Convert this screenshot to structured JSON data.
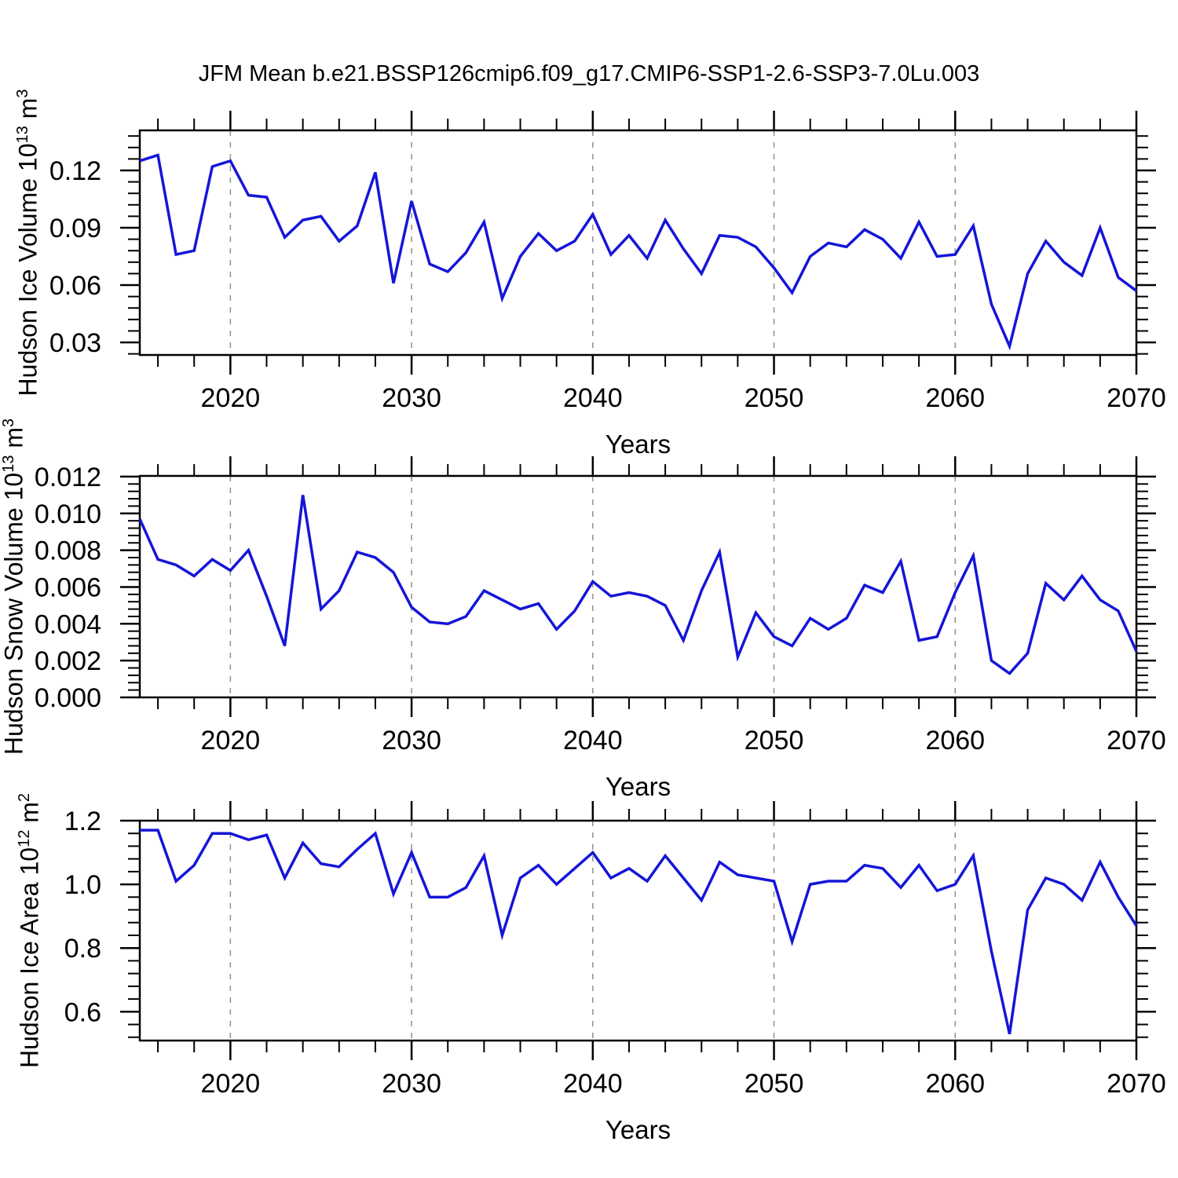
{
  "title": "JFM Mean b.e21.BSSP126cmip6.f09_g17.CMIP6-SSP1-2.6-SSP3-7.0Lu.003",
  "style": {
    "line_color": "#1515d8",
    "axis_color": "#000000",
    "grid_color": "#8f8f8f",
    "background": "#ffffff"
  },
  "chart_data": [
    {
      "type": "line",
      "name": "hudson-ice-volume",
      "ylabel_rich": [
        [
          "Hudson Ice Volume 10",
          0
        ],
        [
          "13",
          1
        ],
        [
          " m",
          0
        ],
        [
          "3",
          1
        ]
      ],
      "xlabel": "Years",
      "xlim": [
        2015,
        2070
      ],
      "ylim": [
        0.02343,
        0.14096
      ],
      "xticks": [
        2020,
        2030,
        2040,
        2050,
        2060,
        2070
      ],
      "xtick_labels": [
        "2020",
        "2030",
        "2040",
        "2050",
        "2060",
        "2070"
      ],
      "x_minor_step": 2,
      "yticks": [
        0.03,
        0.06,
        0.09,
        0.12
      ],
      "ytick_labels": [
        "0.03",
        "0.06",
        "0.09",
        "0.12"
      ],
      "y_minor_step": 0.006,
      "grid_x": [
        2020,
        2030,
        2040,
        2050,
        2060
      ],
      "grid": "vertical-dashed",
      "legend": "none",
      "x": [
        2015,
        2016,
        2017,
        2018,
        2019,
        2020,
        2021,
        2022,
        2023,
        2024,
        2025,
        2026,
        2027,
        2028,
        2029,
        2030,
        2031,
        2032,
        2033,
        2034,
        2035,
        2036,
        2037,
        2038,
        2039,
        2040,
        2041,
        2042,
        2043,
        2044,
        2045,
        2046,
        2047,
        2048,
        2049,
        2050,
        2051,
        2052,
        2053,
        2054,
        2055,
        2056,
        2057,
        2058,
        2059,
        2060,
        2061,
        2062,
        2063,
        2064,
        2065,
        2066,
        2067,
        2068,
        2069,
        2070
      ],
      "values": [
        0.125,
        0.128,
        0.076,
        0.078,
        0.122,
        0.125,
        0.107,
        0.106,
        0.085,
        0.094,
        0.096,
        0.083,
        0.091,
        0.119,
        0.061,
        0.104,
        0.071,
        0.067,
        0.077,
        0.093,
        0.053,
        0.075,
        0.087,
        0.078,
        0.083,
        0.097,
        0.076,
        0.086,
        0.074,
        0.094,
        0.079,
        0.066,
        0.086,
        0.085,
        0.08,
        0.069,
        0.056,
        0.075,
        0.082,
        0.08,
        0.089,
        0.084,
        0.074,
        0.093,
        0.075,
        0.076,
        0.091,
        0.05,
        0.028,
        0.066,
        0.083,
        0.072,
        0.065,
        0.09,
        0.064,
        0.057
      ]
    },
    {
      "type": "line",
      "name": "hudson-snow-volume",
      "ylabel_rich": [
        [
          "Hudson Snow Volume 10",
          0
        ],
        [
          "13",
          1
        ],
        [
          " m",
          0
        ],
        [
          "3",
          1
        ]
      ],
      "xlabel": "Years",
      "xlim": [
        2015,
        2070
      ],
      "ylim": [
        0.0,
        0.01204
      ],
      "xticks": [
        2020,
        2030,
        2040,
        2050,
        2060,
        2070
      ],
      "xtick_labels": [
        "2020",
        "2030",
        "2040",
        "2050",
        "2060",
        "2070"
      ],
      "x_minor_step": 2,
      "yticks": [
        0.0,
        0.002,
        0.004,
        0.006,
        0.008,
        0.01,
        0.012
      ],
      "ytick_labels": [
        "0.000",
        "0.002",
        "0.004",
        "0.006",
        "0.008",
        "0.010",
        "0.012"
      ],
      "y_minor_step": 0.0004,
      "grid_x": [
        2020,
        2030,
        2040,
        2050,
        2060
      ],
      "grid": "vertical-dashed",
      "legend": "none",
      "x": [
        2015,
        2016,
        2017,
        2018,
        2019,
        2020,
        2021,
        2022,
        2023,
        2024,
        2025,
        2026,
        2027,
        2028,
        2029,
        2030,
        2031,
        2032,
        2033,
        2034,
        2035,
        2036,
        2037,
        2038,
        2039,
        2040,
        2041,
        2042,
        2043,
        2044,
        2045,
        2046,
        2047,
        2048,
        2049,
        2050,
        2051,
        2052,
        2053,
        2054,
        2055,
        2056,
        2057,
        2058,
        2059,
        2060,
        2061,
        2062,
        2063,
        2064,
        2065,
        2066,
        2067,
        2068,
        2069,
        2070
      ],
      "values": [
        0.0097,
        0.0075,
        0.0072,
        0.0066,
        0.0075,
        0.0069,
        0.008,
        0.0055,
        0.0028,
        0.011,
        0.0048,
        0.0058,
        0.0079,
        0.0076,
        0.0068,
        0.0049,
        0.0041,
        0.004,
        0.0044,
        0.0058,
        0.0053,
        0.0048,
        0.0051,
        0.0037,
        0.0047,
        0.0063,
        0.0055,
        0.0057,
        0.0055,
        0.005,
        0.0031,
        0.0058,
        0.0079,
        0.0022,
        0.0046,
        0.0033,
        0.0028,
        0.0043,
        0.0037,
        0.0043,
        0.0061,
        0.0057,
        0.0074,
        0.0031,
        0.0033,
        0.0057,
        0.0077,
        0.002,
        0.0013,
        0.0024,
        0.0062,
        0.0053,
        0.0066,
        0.0053,
        0.0047,
        0.0025
      ]
    },
    {
      "type": "line",
      "name": "hudson-ice-area",
      "ylabel_rich": [
        [
          "Hudson Ice Area 10",
          0
        ],
        [
          "12",
          1
        ],
        [
          " m",
          0
        ],
        [
          "2",
          1
        ]
      ],
      "xlabel": "Years",
      "xlim": [
        2015,
        2070
      ],
      "ylim": [
        0.5095,
        1.2
      ],
      "xticks": [
        2020,
        2030,
        2040,
        2050,
        2060,
        2070
      ],
      "xtick_labels": [
        "2020",
        "2030",
        "2040",
        "2050",
        "2060",
        "2070"
      ],
      "x_minor_step": 2,
      "yticks": [
        0.6,
        0.8,
        1.0,
        1.2
      ],
      "ytick_labels": [
        "0.6",
        "0.8",
        "1.0",
        "1.2"
      ],
      "y_minor_step": 0.04,
      "grid_x": [
        2020,
        2030,
        2040,
        2050,
        2060
      ],
      "grid": "vertical-dashed",
      "legend": "none",
      "x": [
        2015,
        2016,
        2017,
        2018,
        2019,
        2020,
        2021,
        2022,
        2023,
        2024,
        2025,
        2026,
        2027,
        2028,
        2029,
        2030,
        2031,
        2032,
        2033,
        2034,
        2035,
        2036,
        2037,
        2038,
        2039,
        2040,
        2041,
        2042,
        2043,
        2044,
        2045,
        2046,
        2047,
        2048,
        2049,
        2050,
        2051,
        2052,
        2053,
        2054,
        2055,
        2056,
        2057,
        2058,
        2059,
        2060,
        2061,
        2062,
        2063,
        2064,
        2065,
        2066,
        2067,
        2068,
        2069,
        2070
      ],
      "values": [
        1.17,
        1.17,
        1.01,
        1.06,
        1.16,
        1.16,
        1.14,
        1.155,
        1.02,
        1.13,
        1.065,
        1.055,
        1.11,
        1.16,
        0.97,
        1.1,
        0.96,
        0.96,
        0.99,
        1.09,
        0.84,
        1.02,
        1.06,
        1.0,
        1.05,
        1.1,
        1.02,
        1.05,
        1.01,
        1.09,
        1.02,
        0.95,
        1.07,
        1.03,
        1.02,
        1.01,
        0.82,
        1.0,
        1.01,
        1.01,
        1.06,
        1.05,
        0.99,
        1.06,
        0.98,
        1.0,
        1.09,
        0.79,
        0.53,
        0.92,
        1.02,
        1.0,
        0.95,
        1.07,
        0.96,
        0.87
      ]
    }
  ]
}
